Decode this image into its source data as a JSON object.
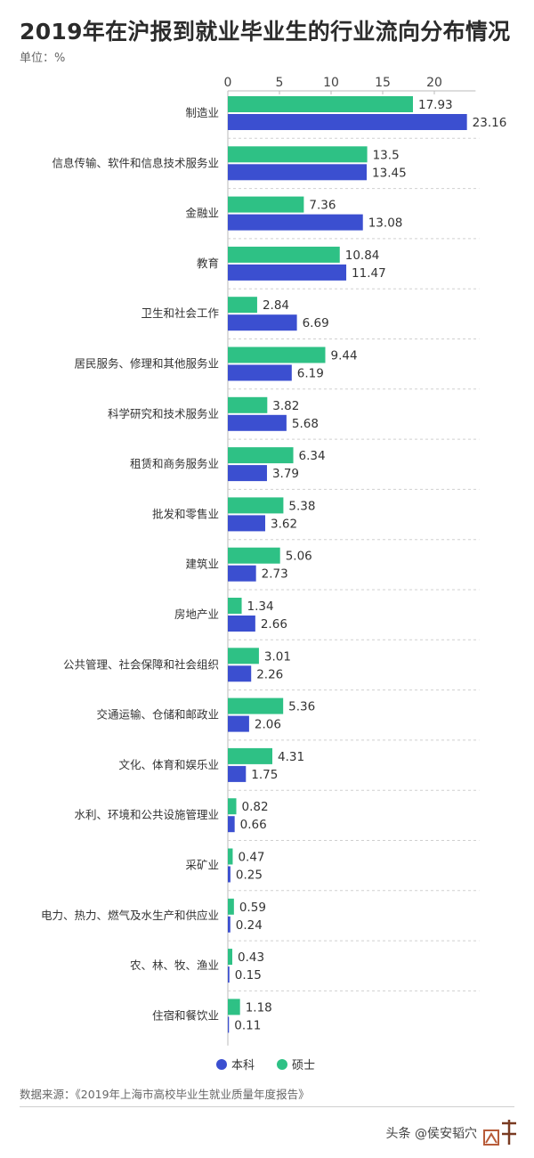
{
  "title": "2019年在沪报到就业毕业生的行业流向分布情况",
  "unit": "单位：%",
  "source": "数据来源：《2019年上海市高校毕业生就业质量年度报告》",
  "footer": {
    "text": "头条 @侯安韬穴",
    "logo_text": "上观"
  },
  "colors": {
    "bachelor": "#3b4fd0",
    "master": "#2ec185",
    "grid": "#d0d0d0",
    "text": "#333333"
  },
  "chart_data": {
    "type": "bar",
    "orientation": "horizontal",
    "x_ticks": [
      0,
      5,
      10,
      15,
      20
    ],
    "xlim": [
      0,
      24
    ],
    "grid": true,
    "legend_position": "bottom",
    "categories": [
      "制造业",
      "信息传输、软件和信息技术服务业",
      "金融业",
      "教育",
      "卫生和社会工作",
      "居民服务、修理和其他服务业",
      "科学研究和技术服务业",
      "租赁和商务服务业",
      "批发和零售业",
      "建筑业",
      "房地产业",
      "公共管理、社会保障和社会组织",
      "交通运输、仓储和邮政业",
      "文化、体育和娱乐业",
      "水利、环境和公共设施管理业",
      "采矿业",
      "电力、热力、燃气及水生产和供应业",
      "农、林、牧、渔业",
      "住宿和餐饮业"
    ],
    "series": [
      {
        "name": "硕士",
        "color": "#2ec185",
        "values": [
          "17.93",
          "13.5",
          "7.36",
          "10.84",
          "2.84",
          "9.44",
          "3.82",
          "6.34",
          "5.38",
          "5.06",
          "1.34",
          "3.01",
          "5.36",
          "4.31",
          "0.82",
          "0.47",
          "0.59",
          "0.43",
          "1.18"
        ]
      },
      {
        "name": "本科",
        "color": "#3b4fd0",
        "values": [
          "23.16",
          "13.45",
          "13.08",
          "11.47",
          "6.69",
          "6.19",
          "5.68",
          "3.79",
          "3.62",
          "2.73",
          "2.66",
          "2.26",
          "2.06",
          "1.75",
          "0.66",
          "0.25",
          "0.24",
          "0.15",
          "0.11"
        ]
      }
    ],
    "legend": [
      "本科",
      "硕士"
    ]
  }
}
